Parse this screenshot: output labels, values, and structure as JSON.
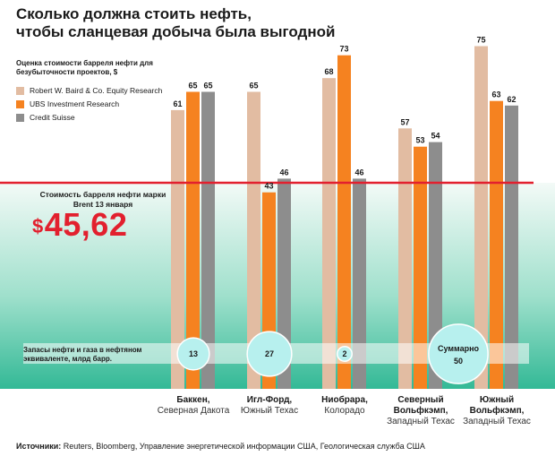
{
  "title_line1": "Сколько должна стоить нефть,",
  "title_line2": "чтобы сланцевая добыча была выгодной",
  "legend_heading": "Оценка стоимости барреля нефти для безубыточности проектов, $",
  "brent_label": "Стоимость барреля нефти марки Brent 13 января",
  "brent_currency": "$",
  "brent_value": "45,62",
  "reserves_label": "Запасы нефти и газа в нефтяном эквиваленте, млрд барр.",
  "source_label": "Источники:",
  "source_text": "Reuters, Bloomberg, Управление энергетической информации США, Геологическая служба США",
  "colors": {
    "series1": "#e2bca2",
    "series2": "#f58220",
    "series3": "#8d8d8d",
    "brent_line": "#e2202e",
    "zone_top": "#f3faf7",
    "zone_bottom": "#33b996",
    "bubble": "#b7f0ee"
  },
  "chart_data": {
    "type": "bar",
    "categories": [
      {
        "name": "Баккен,",
        "sub": [
          "Северная Дакота"
        ]
      },
      {
        "name": "Игл-Форд,",
        "sub": [
          "Южный Техас"
        ]
      },
      {
        "name": "Ниобрара,",
        "sub": [
          "Колорадо"
        ]
      },
      {
        "name": "Северный Вольфкэмп,",
        "name_lines": [
          "Северный",
          "Вольфкэмп,"
        ],
        "sub": [
          "Западный Техас"
        ]
      },
      {
        "name": "Южный Вольфкэмп,",
        "name_lines": [
          "Южный",
          "Вольфкэмп,"
        ],
        "sub": [
          "Западный Техас"
        ]
      }
    ],
    "series": [
      {
        "name": "Robert W. Baird & Co. Equity Research",
        "values": [
          61,
          65,
          68,
          57,
          75
        ]
      },
      {
        "name": "UBS Investment Research",
        "values": [
          65,
          43,
          73,
          53,
          63
        ]
      },
      {
        "name": "Credit Suisse",
        "values": [
          65,
          46,
          46,
          54,
          62
        ]
      }
    ],
    "brent_price": 45.62,
    "reserves": [
      {
        "category": "Баккен,",
        "value": "13"
      },
      {
        "category": "Игл-Форд,",
        "value": "27"
      },
      {
        "category": "Ниобрара,",
        "value": "2"
      },
      {
        "category": "Северный Вольфкэмп, Южный Вольфкэмп,",
        "label": "Суммарно",
        "value": "50"
      }
    ],
    "reserve_values": [
      13,
      27,
      2,
      50
    ],
    "data_labels": true
  }
}
